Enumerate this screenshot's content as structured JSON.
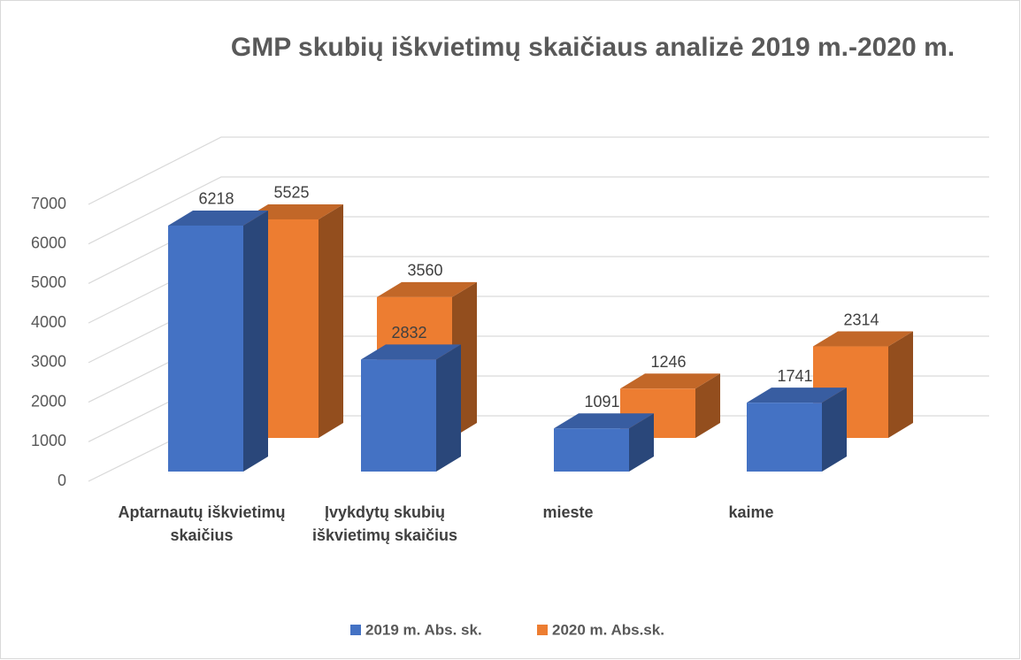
{
  "chart_data": {
    "type": "bar3d",
    "title": "GMP skubių iškvietimų skaičiaus analizė 2019 m.-2020 m.",
    "categories": [
      "Aptarnautų iškvietimų skaičius",
      "Įvykdytų skubių iškvietimų skaičius",
      "mieste",
      "kaime"
    ],
    "series": [
      {
        "name": "2019 m. Abs. sk.",
        "color": "#4472c4",
        "values": [
          6218,
          2832,
          1091,
          1741
        ]
      },
      {
        "name": "2020 m. Abs.sk.",
        "color": "#ed7d31",
        "values": [
          5525,
          3560,
          1246,
          2314
        ]
      }
    ],
    "ylim": [
      0,
      7000
    ],
    "yticks": [
      0,
      1000,
      2000,
      3000,
      4000,
      5000,
      6000,
      7000
    ],
    "grid": true,
    "legend": "bottom"
  }
}
